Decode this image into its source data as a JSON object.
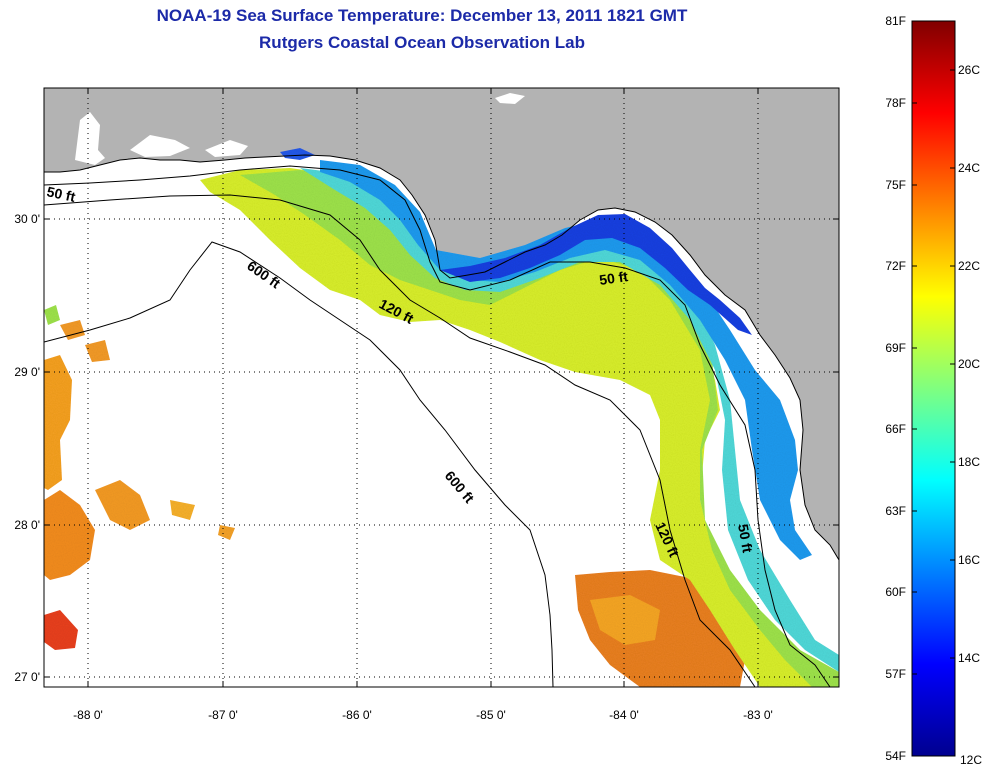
{
  "titles": {
    "line1": "NOAA-19 Sea Surface Temperature:  December 13, 2011 1821 GMT",
    "line2": "Rutgers Coastal Ocean Observation Lab"
  },
  "map": {
    "region": "Eastern Gulf of Mexico / Florida west coast",
    "lon_range": [
      -88.35,
      -82.45
    ],
    "lat_range": [
      26.95,
      30.95
    ],
    "x_ticks": [
      "-88 0'",
      "-87 0'",
      "-86 0'",
      "-85 0'",
      "-84 0'",
      "-83 0'"
    ],
    "y_ticks": [
      "30 0'",
      "29 0'",
      "28 0'",
      "27 0'"
    ],
    "contour_labels": [
      "50 ft",
      "600 ft",
      "120 ft",
      "50 ft",
      "600 ft",
      "120 ft",
      "50 ft"
    ],
    "colors": {
      "land": "#b3b3b3",
      "no_data": "#ffffff",
      "contour": "#000000",
      "grid": "#000000"
    }
  },
  "colorbar": {
    "fahrenheit_labels": [
      "81F",
      "78F",
      "75F",
      "72F",
      "69F",
      "66F",
      "63F",
      "60F",
      "57F",
      "54F"
    ],
    "celsius_labels": [
      "26C",
      "24C",
      "22C",
      "20C",
      "18C",
      "16C",
      "14C",
      "12C"
    ],
    "colormap": "jet",
    "range_c": [
      12,
      27
    ]
  }
}
